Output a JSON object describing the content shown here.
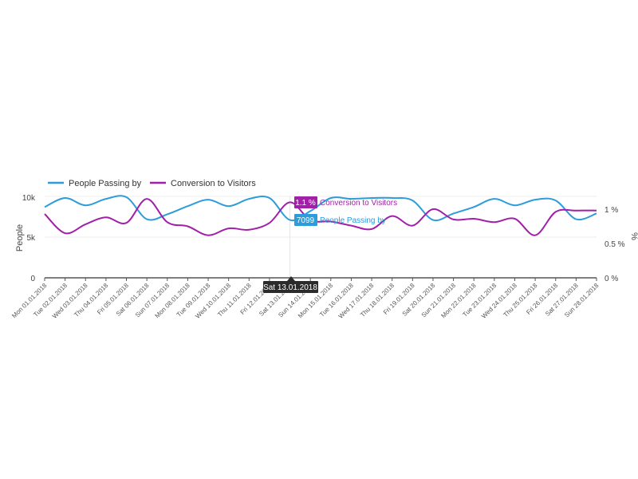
{
  "colors": {
    "people": "#2d9cdb",
    "conversion": "#a020a8",
    "axis": "#555555",
    "grid": "#eeeeee",
    "tooltip_bg": "#2b2b2b"
  },
  "legend": [
    {
      "label": "People Passing by",
      "color": "#2d9cdb"
    },
    {
      "label": "Conversion to Visitors",
      "color": "#a020a8"
    }
  ],
  "hover": {
    "date_label": "Sat 13.01.2018",
    "index": 12,
    "conversion_value": "1.1 %",
    "conversion_label": "Conversion to Visitors",
    "people_value": "7099",
    "people_label": "People Passing by"
  },
  "chart_data": {
    "type": "line",
    "x": [
      "Mon 01.01.2018",
      "Tue 02.01.2018",
      "Wed 03.01.2018",
      "Thu 04.01.2018",
      "Fri 05.01.2018",
      "Sat 06.01.2018",
      "Sun 07.01.2018",
      "Mon 08.01.2018",
      "Tue 09.01.2018",
      "Wed 10.01.2018",
      "Thu 11.01.2018",
      "Fri 12.01.2018",
      "Sat 13.01.2018",
      "Sun 14.01.2018",
      "Mon 15.01.2018",
      "Tue 16.01.2018",
      "Wed 17.01.2018",
      "Thu 18.01.2018",
      "Fri 19.01.2018",
      "Sat 20.01.2018",
      "Sun 21.01.2018",
      "Mon 22.01.2018",
      "Tue 23.01.2018",
      "Wed 24.01.2018",
      "Thu 25.01.2018",
      "Fri 26.01.2018",
      "Sat 27.01.2018",
      "Sun 28.01.2018"
    ],
    "series": [
      {
        "name": "People Passing by",
        "axis": "left",
        "values": [
          8700,
          9800,
          8900,
          9700,
          9900,
          7200,
          7800,
          8800,
          9600,
          8800,
          9700,
          9800,
          7099,
          8200,
          9800,
          9700,
          9800,
          9800,
          9500,
          7100,
          7900,
          8700,
          9700,
          8900,
          9600,
          9500,
          7200,
          7900
        ]
      },
      {
        "name": "Conversion to Visitors",
        "axis": "right",
        "values": [
          0.93,
          0.65,
          0.78,
          0.88,
          0.8,
          1.15,
          0.81,
          0.75,
          0.62,
          0.72,
          0.7,
          0.8,
          1.1,
          0.84,
          0.82,
          0.76,
          0.71,
          0.9,
          0.76,
          1.0,
          0.85,
          0.86,
          0.81,
          0.86,
          0.62,
          0.96,
          0.98,
          0.98
        ]
      }
    ],
    "ylabel": "People",
    "ylim": [
      0,
      10000
    ],
    "yticks": [
      "0",
      "5k",
      "10k"
    ],
    "y2label": "%",
    "y2lim": [
      0,
      1.2
    ],
    "y2ticks": [
      "0 %",
      "0.5 %",
      "1 %"
    ],
    "legend_position": "top-left",
    "grid": true
  }
}
